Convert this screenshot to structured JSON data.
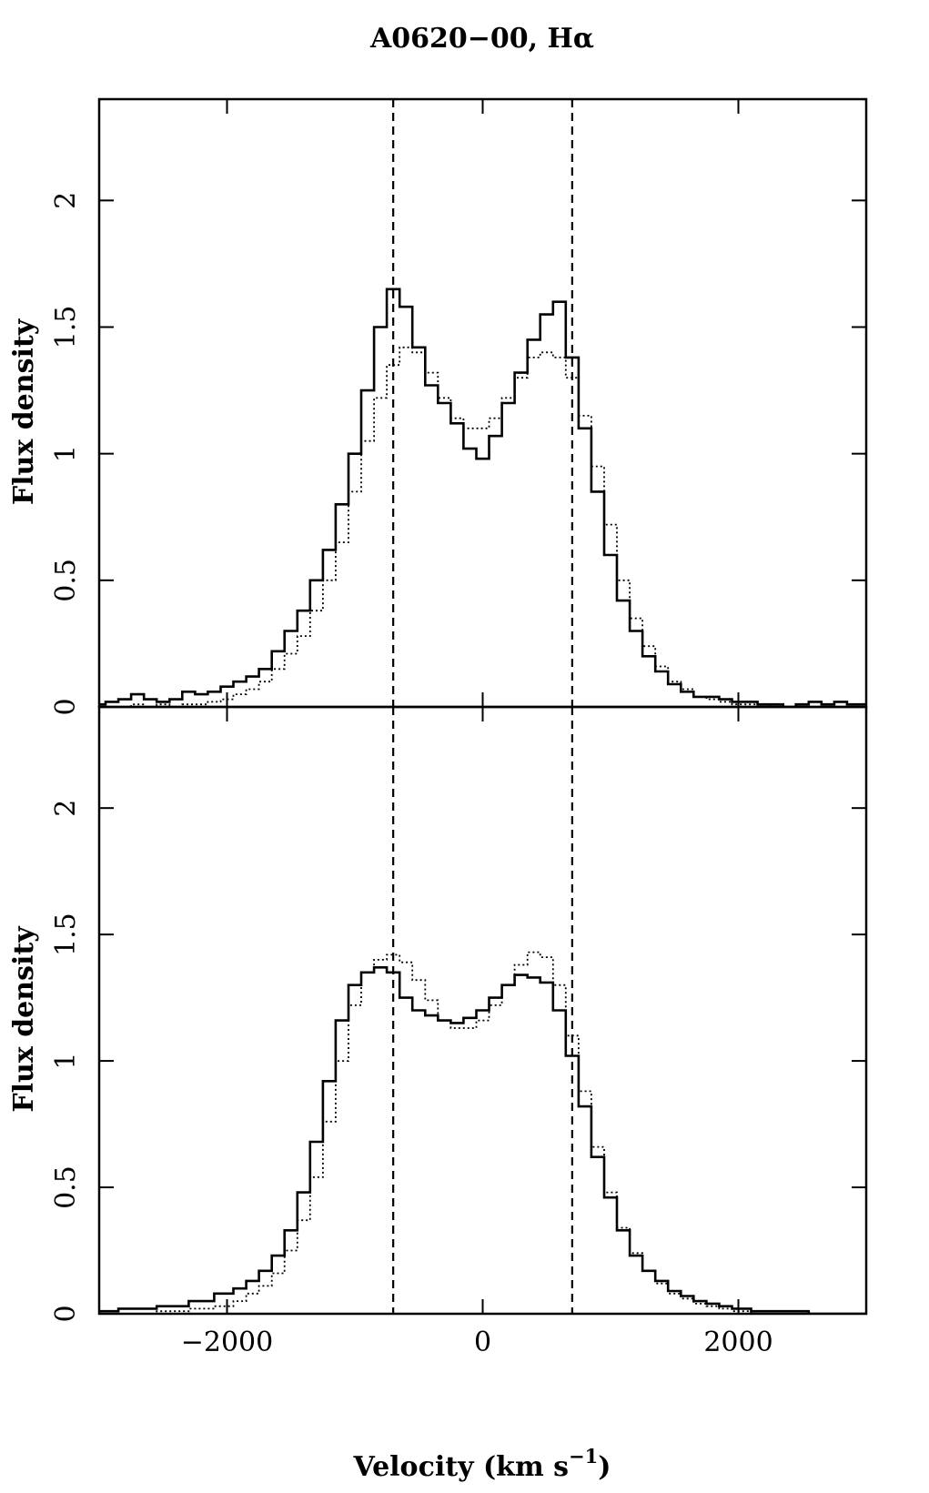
{
  "chart_data": {
    "type": "line",
    "title": "A0620−00, Hα",
    "xlabel": "Velocity (km s",
    "xlabel_sup": "−1",
    "xlabel_close": ")",
    "xlim": [
      -3000,
      3000
    ],
    "x_ticks": [
      -2000,
      0,
      2000
    ],
    "x_tick_labels": [
      "−2000",
      "0",
      "2000"
    ],
    "vlines": [
      -700,
      700
    ],
    "panels": [
      {
        "ylabel": "Flux density",
        "ylim": [
          0,
          2.4
        ],
        "y_ticks": [
          0,
          0.5,
          1,
          1.5,
          2
        ],
        "y_tick_labels": [
          "0",
          "0.5",
          "1",
          "1.5",
          "2"
        ],
        "series": [
          {
            "style": "solid",
            "x": [
              -3000,
              -2900,
              -2800,
              -2700,
              -2600,
              -2500,
              -2400,
              -2300,
              -2200,
              -2100,
              -2000,
              -1900,
              -1800,
              -1700,
              -1600,
              -1500,
              -1400,
              -1300,
              -1200,
              -1100,
              -1000,
              -900,
              -800,
              -700,
              -600,
              -500,
              -400,
              -300,
              -200,
              -100,
              0,
              100,
              200,
              300,
              400,
              500,
              600,
              700,
              800,
              900,
              1000,
              1100,
              1200,
              1300,
              1400,
              1500,
              1600,
              1700,
              1800,
              1900,
              2000,
              2100,
              2200,
              2300,
              2400,
              2500,
              2600,
              2700,
              2800,
              2900,
              3000
            ],
            "y": [
              0.01,
              0.02,
              0.03,
              0.05,
              0.03,
              0.02,
              0.03,
              0.06,
              0.05,
              0.06,
              0.08,
              0.1,
              0.12,
              0.15,
              0.22,
              0.3,
              0.38,
              0.5,
              0.62,
              0.8,
              1.0,
              1.25,
              1.5,
              1.65,
              1.58,
              1.42,
              1.27,
              1.2,
              1.12,
              1.02,
              0.98,
              1.07,
              1.2,
              1.32,
              1.45,
              1.55,
              1.6,
              1.38,
              1.1,
              0.85,
              0.6,
              0.42,
              0.3,
              0.2,
              0.14,
              0.09,
              0.06,
              0.04,
              0.04,
              0.03,
              0.02,
              0.02,
              0.01,
              0.01,
              0.0,
              0.01,
              0.02,
              0.01,
              0.02,
              0.01,
              0.01
            ]
          },
          {
            "style": "dotted",
            "x": [
              -3000,
              -2900,
              -2800,
              -2700,
              -2600,
              -2500,
              -2400,
              -2300,
              -2200,
              -2100,
              -2000,
              -1900,
              -1800,
              -1700,
              -1600,
              -1500,
              -1400,
              -1300,
              -1200,
              -1100,
              -1000,
              -900,
              -800,
              -700,
              -600,
              -500,
              -400,
              -300,
              -200,
              -100,
              0,
              100,
              200,
              300,
              400,
              500,
              600,
              700,
              800,
              900,
              1000,
              1100,
              1200,
              1300,
              1400,
              1500,
              1600,
              1700,
              1800,
              1900,
              2000,
              2100,
              2200,
              2300,
              2400,
              2500,
              2600,
              2700,
              2800,
              2900,
              3000
            ],
            "y": [
              0.0,
              0.0,
              0.0,
              0.01,
              0.0,
              0.01,
              0.0,
              0.01,
              0.01,
              0.02,
              0.03,
              0.05,
              0.07,
              0.1,
              0.15,
              0.21,
              0.28,
              0.38,
              0.5,
              0.65,
              0.85,
              1.05,
              1.22,
              1.35,
              1.42,
              1.4,
              1.32,
              1.22,
              1.14,
              1.1,
              1.1,
              1.14,
              1.22,
              1.3,
              1.38,
              1.4,
              1.38,
              1.3,
              1.15,
              0.95,
              0.72,
              0.5,
              0.35,
              0.24,
              0.16,
              0.1,
              0.07,
              0.04,
              0.03,
              0.02,
              0.01,
              0.01,
              0.01,
              0.0,
              0.0,
              0.0,
              0.0,
              0.0,
              0.0,
              0.0,
              0.0
            ]
          }
        ]
      },
      {
        "ylabel": "Flux density",
        "ylim": [
          0,
          2.4
        ],
        "y_ticks": [
          0,
          0.5,
          1,
          1.5,
          2
        ],
        "y_tick_labels": [
          "0",
          "0.5",
          "1",
          "1.5",
          "2"
        ],
        "series": [
          {
            "style": "solid",
            "x": [
              -3000,
              -2700,
              -2400,
              -2200,
              -2000,
              -1900,
              -1800,
              -1700,
              -1600,
              -1500,
              -1400,
              -1300,
              -1200,
              -1100,
              -1000,
              -900,
              -800,
              -700,
              -600,
              -500,
              -400,
              -300,
              -200,
              -100,
              0,
              100,
              200,
              300,
              400,
              500,
              600,
              700,
              800,
              900,
              1000,
              1100,
              1200,
              1300,
              1400,
              1500,
              1600,
              1700,
              1800,
              1900,
              2000,
              2200,
              2400,
              2700,
              3000
            ],
            "y": [
              0.01,
              0.02,
              0.03,
              0.05,
              0.08,
              0.1,
              0.13,
              0.17,
              0.23,
              0.33,
              0.48,
              0.68,
              0.92,
              1.16,
              1.3,
              1.35,
              1.37,
              1.35,
              1.25,
              1.2,
              1.18,
              1.16,
              1.15,
              1.17,
              1.2,
              1.25,
              1.3,
              1.34,
              1.33,
              1.31,
              1.2,
              1.02,
              0.82,
              0.62,
              0.46,
              0.33,
              0.23,
              0.17,
              0.13,
              0.09,
              0.07,
              0.05,
              0.04,
              0.03,
              0.02,
              0.01,
              0.01,
              0.0,
              0.0
            ]
          },
          {
            "style": "dotted",
            "x": [
              -3000,
              -2700,
              -2400,
              -2200,
              -2000,
              -1900,
              -1800,
              -1700,
              -1600,
              -1500,
              -1400,
              -1300,
              -1200,
              -1100,
              -1000,
              -900,
              -800,
              -700,
              -600,
              -500,
              -400,
              -300,
              -200,
              -100,
              0,
              100,
              200,
              300,
              400,
              500,
              600,
              700,
              800,
              900,
              1000,
              1100,
              1200,
              1300,
              1400,
              1500,
              1600,
              1700,
              1800,
              1900,
              2000,
              2200,
              2400,
              2700,
              3000
            ],
            "y": [
              0.0,
              0.0,
              0.01,
              0.02,
              0.03,
              0.05,
              0.08,
              0.11,
              0.16,
              0.25,
              0.37,
              0.54,
              0.76,
              1.0,
              1.22,
              1.35,
              1.4,
              1.42,
              1.39,
              1.32,
              1.24,
              1.16,
              1.13,
              1.13,
              1.16,
              1.22,
              1.3,
              1.38,
              1.43,
              1.41,
              1.3,
              1.1,
              0.88,
              0.66,
              0.48,
              0.34,
              0.24,
              0.17,
              0.12,
              0.08,
              0.06,
              0.04,
              0.03,
              0.02,
              0.01,
              0.0,
              0.0,
              0.0,
              0.0
            ]
          }
        ]
      }
    ]
  }
}
